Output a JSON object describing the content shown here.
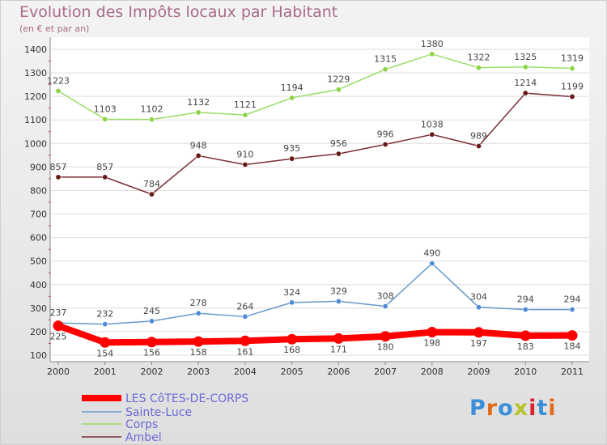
{
  "title": "Evolution des Impôts locaux par Habitant",
  "subtitle": "(en € et par an)",
  "logo_text": "Proxiti",
  "chart_data": {
    "type": "line",
    "title": "Evolution des Impôts locaux par Habitant",
    "subtitle": "(en € et par an)",
    "x": [
      "2000",
      "2001",
      "2002",
      "2003",
      "2004",
      "2005",
      "2006",
      "2007",
      "2008",
      "2009",
      "2010",
      "2011"
    ],
    "ylim": [
      100,
      1400
    ],
    "yticks": [
      100,
      200,
      300,
      400,
      500,
      600,
      700,
      800,
      900,
      1000,
      1100,
      1200,
      1300,
      1400
    ],
    "grid": "horizontal",
    "legend_position": "bottom-left",
    "series": [
      {
        "name": "LES CôTES-DE-CORPS",
        "color": "#ff0000",
        "marker": "#ff0000",
        "values": [
          225,
          154,
          156,
          158,
          161,
          168,
          171,
          180,
          198,
          197,
          183,
          184
        ]
      },
      {
        "name": "Sainte-Luce",
        "color": "#6699cc",
        "marker": "#4f8ad6",
        "values": [
          237,
          232,
          245,
          278,
          264,
          324,
          329,
          308,
          490,
          304,
          294,
          294
        ]
      },
      {
        "name": "Corps",
        "color": "#99dd66",
        "marker": "#8cd346",
        "values": [
          1223,
          1103,
          1102,
          1132,
          1121,
          1194,
          1229,
          1315,
          1380,
          1322,
          1325,
          1319
        ]
      },
      {
        "name": "Ambel",
        "color": "#7a2f35",
        "marker": "#661818",
        "values": [
          857,
          857,
          784,
          948,
          910,
          935,
          956,
          996,
          1038,
          989,
          1214,
          1199
        ]
      }
    ]
  }
}
